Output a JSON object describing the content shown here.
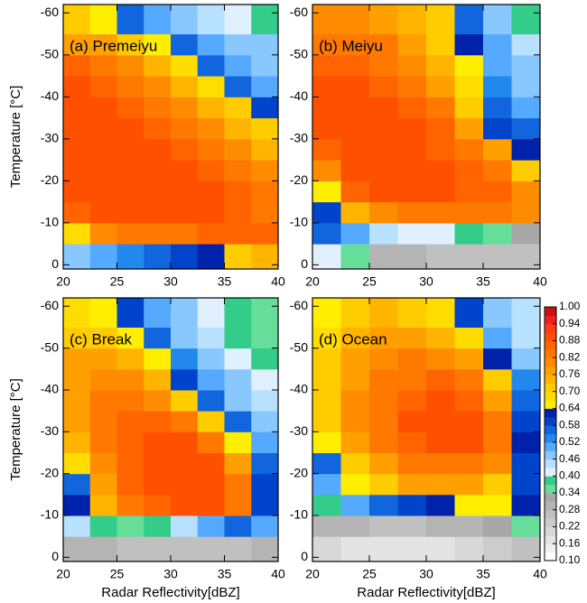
{
  "chart_data": [
    {
      "type": "heatmap",
      "title": "(a) Premeiyu",
      "ylabel": "Temperature [°C]",
      "x_bins": [
        20,
        22.5,
        25,
        27.5,
        30,
        32.5,
        35,
        37.5,
        40
      ],
      "y_bins": [
        1,
        -5,
        -10,
        -15,
        -20,
        -25,
        -30,
        -35,
        -40,
        -45,
        -50,
        -55,
        -62
      ],
      "values": [
        [
          0.48,
          0.5,
          0.52,
          0.55,
          0.58,
          0.62,
          0.7,
          0.75
        ],
        [
          0.68,
          0.8,
          0.82,
          0.83,
          0.84,
          0.85,
          0.86,
          0.85
        ],
        [
          0.85,
          0.88,
          0.88,
          0.88,
          0.88,
          0.88,
          0.87,
          0.84
        ],
        [
          0.88,
          0.89,
          0.9,
          0.9,
          0.89,
          0.88,
          0.86,
          0.82
        ],
        [
          0.89,
          0.9,
          0.9,
          0.9,
          0.88,
          0.86,
          0.83,
          0.79
        ],
        [
          0.9,
          0.9,
          0.9,
          0.88,
          0.86,
          0.83,
          0.79,
          0.75
        ],
        [
          0.9,
          0.9,
          0.88,
          0.86,
          0.83,
          0.79,
          0.75,
          0.72
        ],
        [
          0.9,
          0.88,
          0.86,
          0.83,
          0.79,
          0.74,
          0.7,
          0.6
        ],
        [
          0.88,
          0.86,
          0.83,
          0.79,
          0.74,
          0.69,
          0.55,
          0.5
        ],
        [
          0.85,
          0.83,
          0.79,
          0.75,
          0.68,
          0.55,
          0.5,
          0.48
        ],
        [
          0.78,
          0.76,
          0.72,
          0.66,
          0.55,
          0.5,
          0.48,
          0.46
        ],
        [
          0.7,
          0.66,
          0.56,
          0.5,
          0.48,
          0.45,
          0.42,
          0.38
        ]
      ],
      "xlim": [
        20,
        40
      ],
      "ylim": [
        1,
        -62
      ],
      "xticks": [
        20,
        25,
        30,
        35,
        40
      ],
      "yticks": [
        0,
        -10,
        -20,
        -30,
        -40,
        -50,
        -60
      ]
    },
    {
      "type": "heatmap",
      "title": "(b) Meiyu",
      "x_bins": [
        20,
        22.5,
        25,
        27.5,
        30,
        32.5,
        35,
        37.5,
        40
      ],
      "y_bins": [
        1,
        -5,
        -10,
        -15,
        -20,
        -25,
        -30,
        -35,
        -40,
        -45,
        -50,
        -55,
        -62
      ],
      "values": [
        [
          0.42,
          0.35,
          0.3,
          0.28,
          0.26,
          0.25,
          0.25,
          0.25
        ],
        [
          0.56,
          0.5,
          0.45,
          0.42,
          0.4,
          0.38,
          0.36,
          0.33
        ],
        [
          0.6,
          0.75,
          0.8,
          0.82,
          0.83,
          0.84,
          0.84,
          0.8
        ],
        [
          0.66,
          0.86,
          0.88,
          0.88,
          0.88,
          0.87,
          0.86,
          0.8
        ],
        [
          0.8,
          0.88,
          0.9,
          0.9,
          0.88,
          0.86,
          0.82,
          0.72
        ],
        [
          0.85,
          0.9,
          0.9,
          0.88,
          0.86,
          0.83,
          0.76,
          0.62
        ],
        [
          0.88,
          0.9,
          0.9,
          0.88,
          0.85,
          0.78,
          0.6,
          0.55
        ],
        [
          0.88,
          0.9,
          0.88,
          0.86,
          0.82,
          0.72,
          0.55,
          0.5
        ],
        [
          0.88,
          0.88,
          0.86,
          0.84,
          0.78,
          0.68,
          0.52,
          0.48
        ],
        [
          0.86,
          0.86,
          0.84,
          0.8,
          0.75,
          0.65,
          0.5,
          0.46
        ],
        [
          0.84,
          0.84,
          0.82,
          0.78,
          0.72,
          0.62,
          0.5,
          0.44
        ],
        [
          0.8,
          0.8,
          0.78,
          0.74,
          0.7,
          0.55,
          0.48,
          0.38
        ]
      ],
      "xlim": [
        20,
        40
      ],
      "ylim": [
        1,
        -62
      ],
      "xticks": [
        20,
        25,
        30,
        35,
        40
      ],
      "yticks": [
        0,
        -10,
        -20,
        -30,
        -40,
        -50,
        -60
      ]
    },
    {
      "type": "heatmap",
      "title": "(c) Break",
      "ylabel": "Temperature [°C]",
      "xlabel": "Radar Reflectivity[dBZ]",
      "x_bins": [
        20,
        22.5,
        25,
        27.5,
        30,
        32.5,
        35,
        37.5,
        40
      ],
      "y_bins": [
        1,
        -5,
        -10,
        -15,
        -20,
        -25,
        -30,
        -35,
        -40,
        -45,
        -50,
        -55,
        -62
      ],
      "values": [
        [
          0.3,
          0.28,
          0.27,
          0.26,
          0.26,
          0.26,
          0.27,
          0.3
        ],
        [
          0.45,
          0.38,
          0.36,
          0.38,
          0.45,
          0.5,
          0.55,
          0.5
        ],
        [
          0.62,
          0.75,
          0.82,
          0.86,
          0.88,
          0.88,
          0.84,
          0.6
        ],
        [
          0.55,
          0.78,
          0.85,
          0.88,
          0.9,
          0.89,
          0.84,
          0.6
        ],
        [
          0.68,
          0.8,
          0.86,
          0.9,
          0.9,
          0.88,
          0.78,
          0.56
        ],
        [
          0.75,
          0.82,
          0.86,
          0.88,
          0.88,
          0.84,
          0.66,
          0.5
        ],
        [
          0.78,
          0.82,
          0.85,
          0.86,
          0.82,
          0.72,
          0.56,
          0.46
        ],
        [
          0.78,
          0.82,
          0.83,
          0.8,
          0.72,
          0.56,
          0.48,
          0.44
        ],
        [
          0.78,
          0.8,
          0.8,
          0.74,
          0.6,
          0.5,
          0.46,
          0.42
        ],
        [
          0.76,
          0.78,
          0.74,
          0.66,
          0.52,
          0.48,
          0.42,
          0.38
        ],
        [
          0.72,
          0.72,
          0.66,
          0.55,
          0.48,
          0.44,
          0.38,
          0.36
        ],
        [
          0.68,
          0.66,
          0.58,
          0.5,
          0.46,
          0.42,
          0.38,
          0.35
        ]
      ],
      "xlim": [
        20,
        40
      ],
      "ylim": [
        1,
        -62
      ],
      "xticks": [
        20,
        25,
        30,
        35,
        40
      ],
      "yticks": [
        0,
        -10,
        -20,
        -30,
        -40,
        -50,
        -60
      ]
    },
    {
      "type": "heatmap",
      "title": "(d) Ocean",
      "xlabel": "Radar Reflectivity[dBZ]",
      "x_bins": [
        20,
        22.5,
        25,
        27.5,
        30,
        32.5,
        35,
        37.5,
        40
      ],
      "y_bins": [
        1,
        -5,
        -10,
        -15,
        -20,
        -25,
        -30,
        -35,
        -40,
        -45,
        -50,
        -55,
        -62
      ],
      "values": [
        [
          0.2,
          0.18,
          0.16,
          0.16,
          0.18,
          0.2,
          0.22,
          0.25
        ],
        [
          0.3,
          0.28,
          0.26,
          0.27,
          0.28,
          0.3,
          0.32,
          0.36
        ],
        [
          0.38,
          0.5,
          0.56,
          0.6,
          0.62,
          0.64,
          0.66,
          0.62
        ],
        [
          0.5,
          0.64,
          0.72,
          0.76,
          0.78,
          0.78,
          0.72,
          0.58
        ],
        [
          0.56,
          0.72,
          0.78,
          0.82,
          0.84,
          0.84,
          0.8,
          0.6
        ],
        [
          0.66,
          0.76,
          0.82,
          0.86,
          0.88,
          0.88,
          0.82,
          0.62
        ],
        [
          0.7,
          0.8,
          0.84,
          0.88,
          0.9,
          0.88,
          0.82,
          0.6
        ],
        [
          0.72,
          0.8,
          0.84,
          0.86,
          0.88,
          0.86,
          0.78,
          0.56
        ],
        [
          0.72,
          0.78,
          0.82,
          0.84,
          0.85,
          0.82,
          0.72,
          0.52
        ],
        [
          0.7,
          0.76,
          0.8,
          0.82,
          0.8,
          0.76,
          0.62,
          0.48
        ],
        [
          0.68,
          0.74,
          0.78,
          0.78,
          0.74,
          0.68,
          0.5,
          0.44
        ],
        [
          0.66,
          0.7,
          0.74,
          0.72,
          0.68,
          0.6,
          0.48,
          0.44
        ]
      ],
      "xlim": [
        20,
        40
      ],
      "ylim": [
        1,
        -62
      ],
      "xticks": [
        20,
        25,
        30,
        35,
        40
      ],
      "yticks": [
        0,
        -10,
        -20,
        -30,
        -40,
        -50,
        -60
      ]
    }
  ],
  "colorbar": {
    "levels": [
      0.1,
      0.13,
      0.16,
      0.19,
      0.22,
      0.25,
      0.28,
      0.31,
      0.34,
      0.37,
      0.4,
      0.43,
      0.46,
      0.49,
      0.52,
      0.55,
      0.58,
      0.61,
      0.64,
      0.67,
      0.7,
      0.73,
      0.76,
      0.79,
      0.82,
      0.85,
      0.88,
      0.91,
      0.94,
      0.97,
      1
    ],
    "colors": [
      "#ffffff",
      "#f0f0f0",
      "#e4e4e4",
      "#d8d8d8",
      "#cccccc",
      "#c0c0c0",
      "#b4b4b4",
      "#a8a8a8",
      "#66dd99",
      "#33cc88",
      "#e0f0ff",
      "#b8e0ff",
      "#88c8ff",
      "#55aaff",
      "#2288ee",
      "#1166dd",
      "#0044cc",
      "#0022aa",
      "#ffee00",
      "#ffdd00",
      "#ffcc00",
      "#ffb400",
      "#ff9f00",
      "#ff8c00",
      "#ff7800",
      "#ff6400",
      "#ff5000",
      "#ff3c1a",
      "#ee2020",
      "#cc1010"
    ],
    "ticks": [
      {
        "value": 0.1,
        "label": "0.10"
      },
      0.16,
      0.22,
      0.28,
      0.34,
      {
        "value": 0.4,
        "label": "0.40"
      },
      0.46,
      0.52,
      0.58,
      0.64,
      {
        "value": 0.7,
        "label": "0.70"
      },
      0.76,
      0.82,
      0.88,
      0.94,
      {
        "value": 1,
        "label": "1.00"
      }
    ]
  }
}
